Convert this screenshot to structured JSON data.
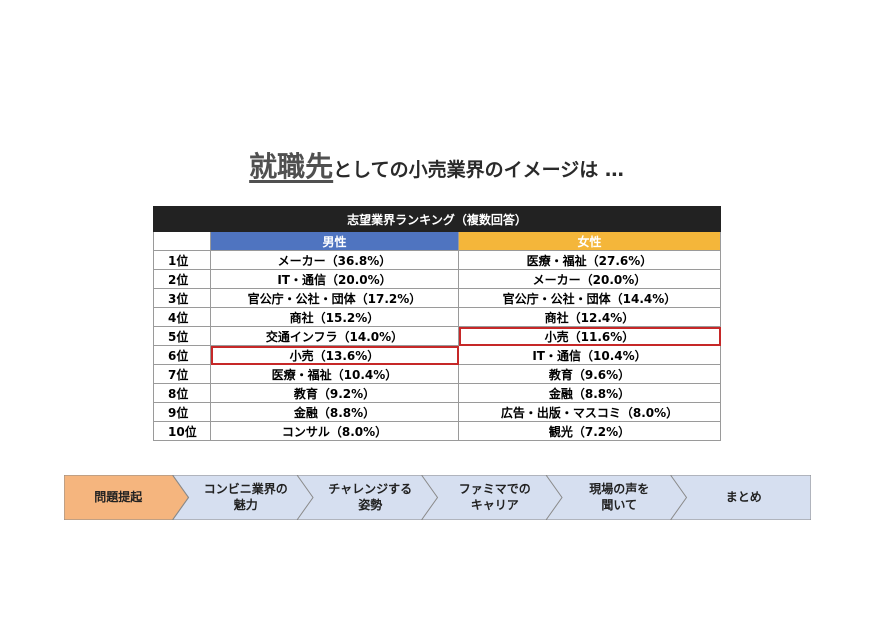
{
  "title": {
    "emphasis": "就職先",
    "rest": "としての小売業界のイメージは …"
  },
  "table": {
    "heading": "志望業界ランキング（複数回答）",
    "male_header": "男性",
    "female_header": "女性",
    "rows": [
      {
        "rank": "1位",
        "male": "メーカー（36.8%）",
        "female": "医療・福祉（27.6%）"
      },
      {
        "rank": "2位",
        "male": "IT・通信（20.0%）",
        "female": "メーカー（20.0%）"
      },
      {
        "rank": "3位",
        "male": "官公庁・公社・団体（17.2%）",
        "female": "官公庁・公社・団体（14.4%）"
      },
      {
        "rank": "4位",
        "male": "商社（15.2%）",
        "female": "商社（12.4%）"
      },
      {
        "rank": "5位",
        "male": "交通インフラ（14.0%）",
        "female": "小売（11.6%）"
      },
      {
        "rank": "6位",
        "male": "小売（13.6%）",
        "female": "IT・通信（10.4%）"
      },
      {
        "rank": "7位",
        "male": "医療・福祉（10.4%）",
        "female": "教育（9.6%）"
      },
      {
        "rank": "8位",
        "male": "教育（9.2%）",
        "female": "金融（8.8%）"
      },
      {
        "rank": "9位",
        "male": "金融（8.8%）",
        "female": "広告・出版・マスコミ（8.0%）"
      },
      {
        "rank": "10位",
        "male": "コンサル（8.0%）",
        "female": "観光（7.2%）"
      }
    ],
    "highlight_color": "#c62828",
    "male_color": "#4f74c0",
    "female_color": "#f4b63a"
  },
  "flow": {
    "active_color": "#f5b57e",
    "inactive_color": "#d6dff0",
    "steps": [
      {
        "label": "問題提起",
        "active": true
      },
      {
        "label": "コンビニ業界の\n魅力",
        "active": false
      },
      {
        "label": "チャレンジする\n姿勢",
        "active": false
      },
      {
        "label": "ファミマでの\nキャリア",
        "active": false
      },
      {
        "label": "現場の声を\n聞いて",
        "active": false
      },
      {
        "label": "まとめ",
        "active": false
      }
    ]
  }
}
